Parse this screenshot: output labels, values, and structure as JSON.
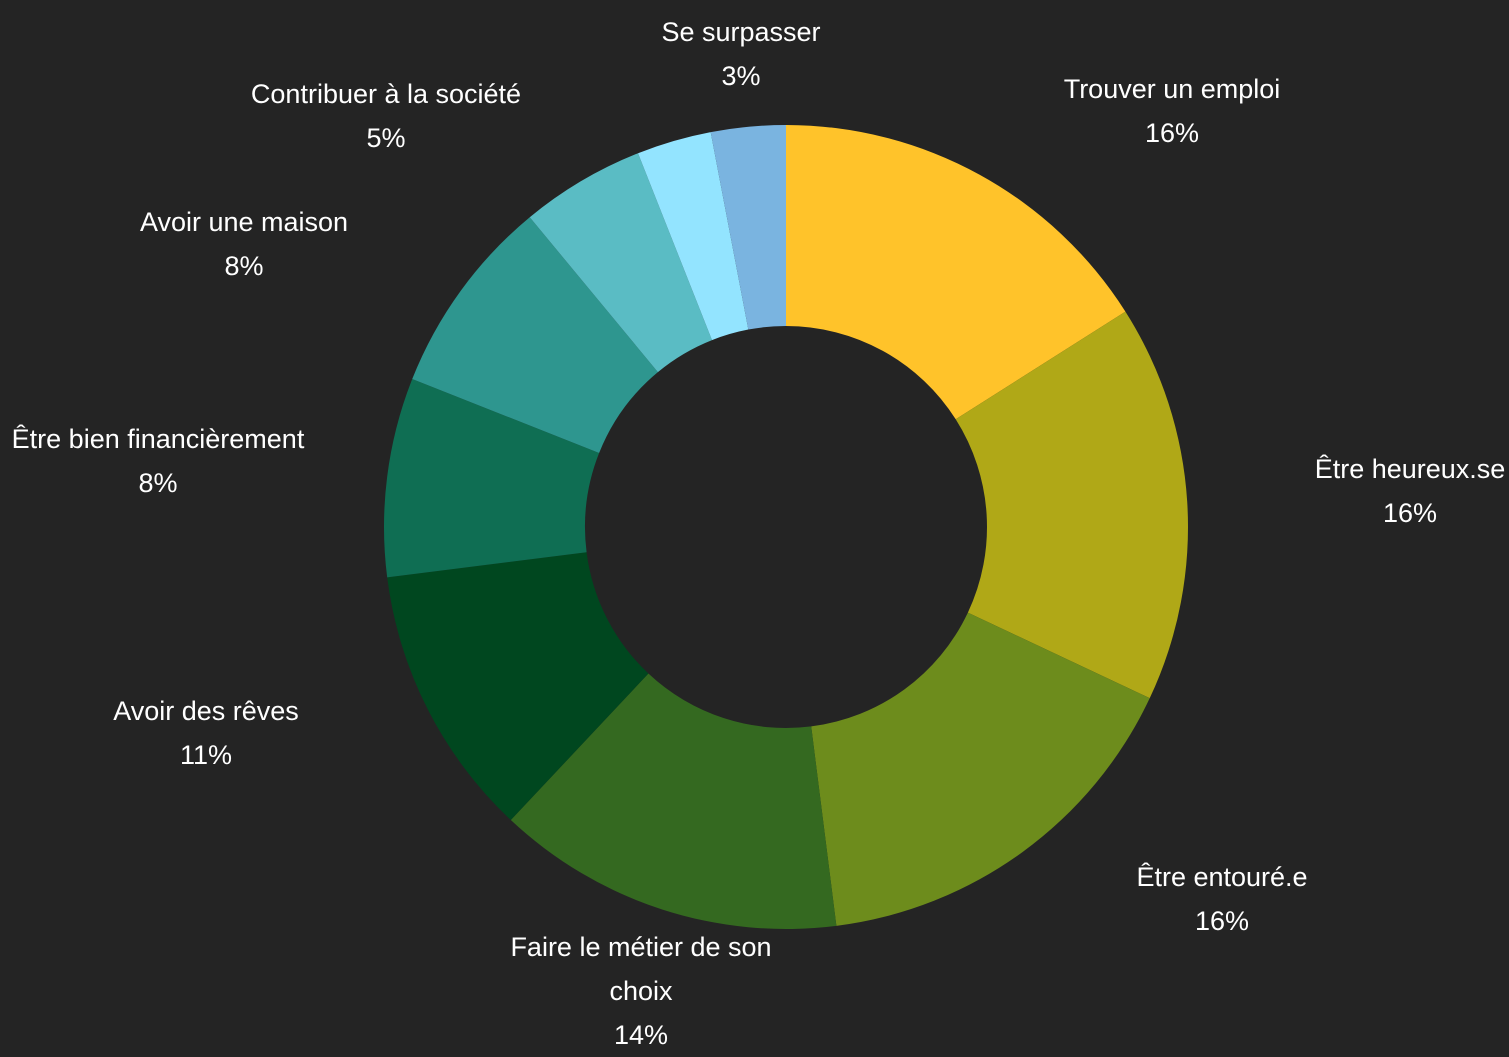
{
  "chart_data": {
    "type": "pie",
    "donut": true,
    "background": "#242424",
    "label_color": "#ffffff",
    "slices": [
      {
        "label": [
          "Trouver un emploi"
        ],
        "value": 16,
        "display": "16%",
        "color": "#FFC32A"
      },
      {
        "label": [
          "Être heureux.se"
        ],
        "value": 16,
        "display": "16%",
        "color": "#B0A817"
      },
      {
        "label": [
          "Être entouré.e"
        ],
        "value": 16,
        "display": "16%",
        "color": "#6D8C1C"
      },
      {
        "label": [
          "Faire le métier de son",
          "choix"
        ],
        "value": 14,
        "display": "14%",
        "color": "#346920"
      },
      {
        "label": [
          "Avoir des rêves"
        ],
        "value": 11,
        "display": "11%",
        "color": "#00471F"
      },
      {
        "label": [
          "Être bien financièrement"
        ],
        "value": 8,
        "display": "8%",
        "color": "#0F6E53"
      },
      {
        "label": [
          "Avoir une maison"
        ],
        "value": 8,
        "display": "8%",
        "color": "#2E968F"
      },
      {
        "label": [
          "Contribuer à la société"
        ],
        "value": 5,
        "display": "5%",
        "color": "#5ABCC4"
      },
      {
        "label": [
          "Se surpasser"
        ],
        "value": 3,
        "display": "3%",
        "color": "#93E4FF"
      },
      {
        "label": [
          "Se surpasser"
        ],
        "value": 3,
        "display": "3%",
        "color": "#7AB4E0",
        "hidden_label": true
      }
    ]
  }
}
